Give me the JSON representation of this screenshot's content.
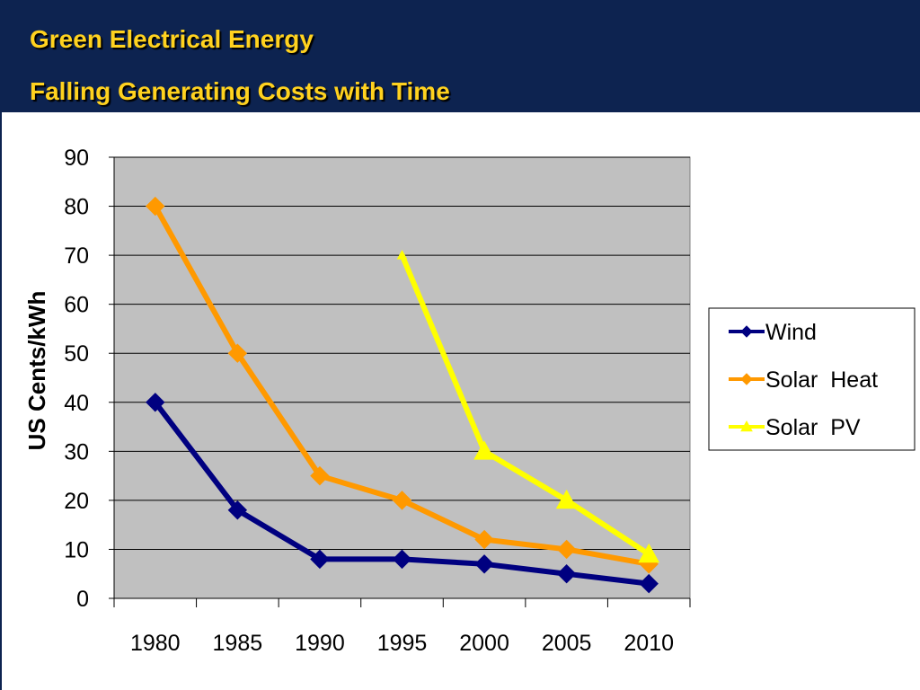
{
  "slide": {
    "title_line1": "Green Electrical Energy",
    "title_line2": "Falling Generating Costs with Time"
  },
  "colors": {
    "header_bg": "#0d2350",
    "title_text": "#ffd21f",
    "plot_bg": "#c0c0c0",
    "wind": "#000080",
    "solar_heat": "#ff9900",
    "solar_pv": "#ffff00"
  },
  "chart_data": {
    "type": "line",
    "title": "",
    "xlabel": "",
    "ylabel": "US Cents/kWh",
    "categories": [
      "1980",
      "1985",
      "1990",
      "1995",
      "2000",
      "2005",
      "2010"
    ],
    "ylim": [
      0,
      90
    ],
    "yticks": [
      0,
      10,
      20,
      30,
      40,
      50,
      60,
      70,
      80,
      90
    ],
    "grid": true,
    "legend_position": "right",
    "series": [
      {
        "name": "Wind",
        "color": "#000080",
        "marker": "diamond",
        "values": [
          40,
          18,
          8,
          8,
          7,
          5,
          3
        ]
      },
      {
        "name": "Solar  Heat",
        "color": "#ff9900",
        "marker": "diamond",
        "values": [
          80,
          50,
          25,
          20,
          12,
          10,
          7
        ]
      },
      {
        "name": "Solar  PV",
        "color": "#ffff00",
        "marker": "triangle",
        "values": [
          null,
          null,
          null,
          70,
          30,
          20,
          9
        ]
      }
    ]
  }
}
